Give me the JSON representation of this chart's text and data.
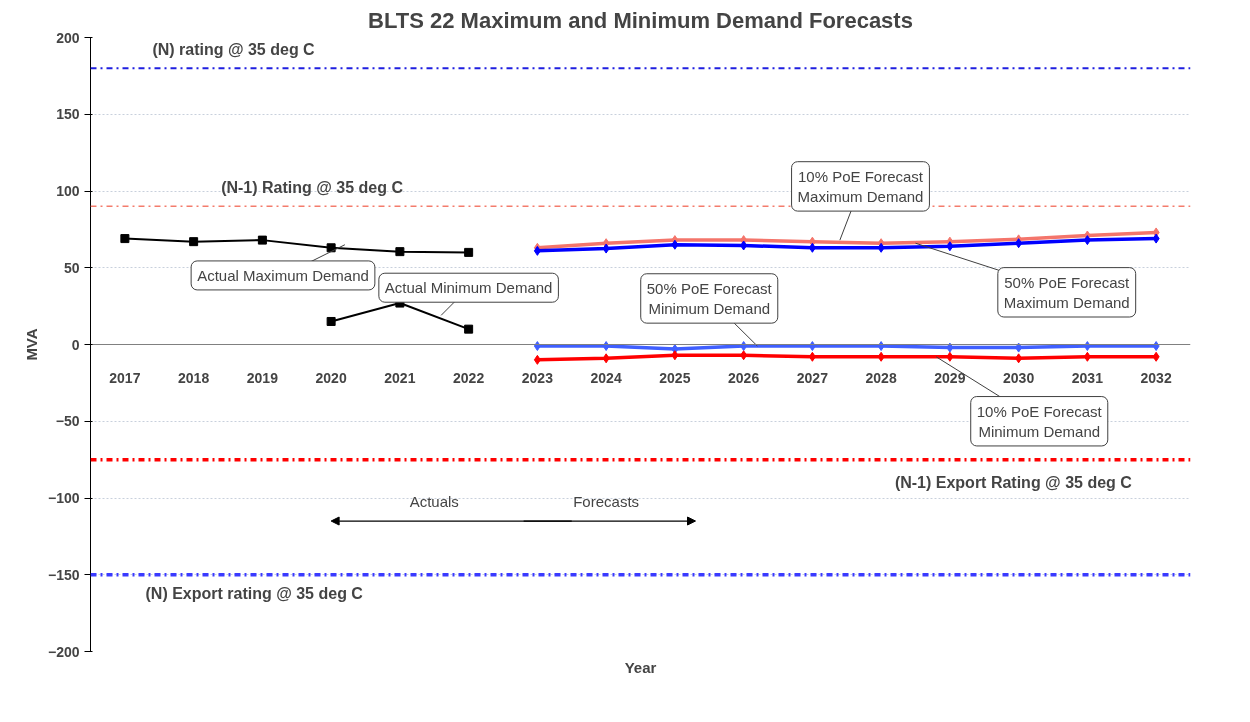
{
  "chart_data": {
    "type": "line",
    "title": "BLTS 22 Maximum and Minimum Demand Forecasts",
    "xlabel": "Year",
    "ylabel": "MVA",
    "categories": [
      "2017",
      "2018",
      "2019",
      "2020",
      "2021",
      "2022",
      "2023",
      "2024",
      "2025",
      "2026",
      "2027",
      "2028",
      "2029",
      "2030",
      "2031",
      "2032"
    ],
    "ylim": [
      -200,
      200
    ],
    "yticks": [
      -200,
      -150,
      -100,
      -50,
      0,
      50,
      100,
      150,
      200
    ],
    "grid": "y",
    "line_style": "solid",
    "series": [
      {
        "name": "Actual Maximum Demand",
        "color": "#000000",
        "marker": "square",
        "values": [
          69,
          67,
          68,
          63,
          60.5,
          60,
          null,
          null,
          null,
          null,
          null,
          null,
          null,
          null,
          null,
          null
        ]
      },
      {
        "name": "Actual Minimum Demand",
        "color": "#000000",
        "marker": "square",
        "values": [
          null,
          null,
          null,
          15,
          27,
          10,
          null,
          null,
          null,
          null,
          null,
          null,
          null,
          null,
          null,
          null
        ]
      },
      {
        "name": "10% PoE Forecast Maximum Demand",
        "color": "#f4756b",
        "marker": "diamond",
        "values": [
          null,
          null,
          null,
          null,
          null,
          null,
          63,
          66,
          68,
          68,
          67,
          66,
          67,
          68.5,
          71,
          73
        ]
      },
      {
        "name": "50% PoE Forecast Maximum Demand",
        "color": "#0000ff",
        "marker": "diamond",
        "values": [
          null,
          null,
          null,
          null,
          null,
          null,
          61,
          62.5,
          65,
          64.5,
          63,
          63,
          64,
          66,
          68,
          69
        ]
      },
      {
        "name": "50% PoE Forecast Minimum Demand",
        "color": "#3f5fff",
        "marker": "diamond",
        "values": [
          null,
          null,
          null,
          null,
          null,
          null,
          -1,
          -1,
          -3,
          -1,
          -1,
          -1,
          -2,
          -2,
          -1,
          -1
        ]
      },
      {
        "name": "10% PoE Forecast Minimum Demand",
        "color": "#ff0000",
        "marker": "diamond",
        "values": [
          null,
          null,
          null,
          null,
          null,
          null,
          -10,
          -9,
          -7,
          -7,
          -8,
          -8,
          -8,
          -9,
          -8,
          -8
        ]
      }
    ],
    "ref_lines": [
      {
        "axis": "y",
        "value": 180,
        "label": "(N) rating @ 35 deg C",
        "color": "#1f1fe0",
        "line_style": "dashdot"
      },
      {
        "axis": "y",
        "value": 90,
        "label": "(N-1) Rating @ 35 deg C",
        "color": "#f47c6c",
        "line_style": "dashdot"
      },
      {
        "axis": "y",
        "value": -75,
        "label": "(N-1) Export Rating @ 35 deg C",
        "color": "#ff0000",
        "line_style": "dashdot"
      },
      {
        "axis": "y",
        "value": -150,
        "label": "(N) Export rating @ 35 deg C",
        "color": "#3a3aff",
        "line_style": "dashdot"
      }
    ],
    "annotations": [
      "Actuals",
      "Forecasts"
    ]
  }
}
